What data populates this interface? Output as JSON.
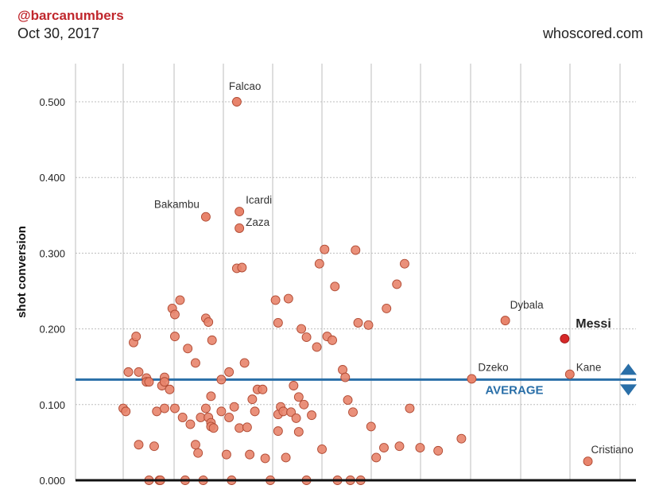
{
  "header": {
    "handle": "@barcanumbers",
    "date": "Oct 30, 2017",
    "source": "whoscored.com"
  },
  "colors": {
    "point_fill": "#e8846c",
    "point_stroke": "#b04a33",
    "highlight": "#d62828",
    "average_line": "#2a6fa8",
    "grid": "#bdbdbd"
  },
  "chart_data": {
    "type": "scatter",
    "ylabel": "shot conversion",
    "xlabel": "",
    "ylim": [
      0,
      0.55
    ],
    "yticks": [
      {
        "value": 0.0,
        "label": "0.000"
      },
      {
        "value": 0.1,
        "label": "0.100"
      },
      {
        "value": 0.2,
        "label": "0.200"
      },
      {
        "value": 0.3,
        "label": "0.300"
      },
      {
        "value": 0.4,
        "label": "0.400"
      },
      {
        "value": 0.5,
        "label": "0.500"
      }
    ],
    "average": {
      "value": 0.133,
      "label": "AVERAGE"
    },
    "grid": true,
    "labeled_points": [
      {
        "name": "Falcao",
        "x": 2.2,
        "y": 0.5
      },
      {
        "name": "Bakambu",
        "x": 1.6,
        "y": 0.348
      },
      {
        "name": "Icardi",
        "x": 2.25,
        "y": 0.355
      },
      {
        "name": "Zaza",
        "x": 2.25,
        "y": 0.333
      },
      {
        "name": "Dybala",
        "x": 7.4,
        "y": 0.211
      },
      {
        "name": "Messi",
        "x": 8.55,
        "y": 0.187,
        "highlight": true
      },
      {
        "name": "Dzeko",
        "x": 6.75,
        "y": 0.134
      },
      {
        "name": "Kane",
        "x": 8.65,
        "y": 0.14
      },
      {
        "name": "Cristiano",
        "x": 9.0,
        "y": 0.025
      }
    ],
    "points": [
      [
        0.0,
        0.095
      ],
      [
        0.05,
        0.091
      ],
      [
        0.1,
        0.143
      ],
      [
        0.2,
        0.182
      ],
      [
        0.25,
        0.19
      ],
      [
        0.3,
        0.143
      ],
      [
        0.3,
        0.047
      ],
      [
        0.45,
        0.135
      ],
      [
        0.45,
        0.13
      ],
      [
        0.5,
        0.0
      ],
      [
        0.5,
        0.13
      ],
      [
        0.6,
        0.045
      ],
      [
        0.65,
        0.091
      ],
      [
        0.7,
        0.0
      ],
      [
        0.72,
        0.0
      ],
      [
        0.75,
        0.125
      ],
      [
        0.8,
        0.136
      ],
      [
        0.8,
        0.13
      ],
      [
        0.8,
        0.095
      ],
      [
        0.9,
        0.12
      ],
      [
        0.95,
        0.227
      ],
      [
        1.0,
        0.219
      ],
      [
        1.0,
        0.19
      ],
      [
        1.0,
        0.095
      ],
      [
        1.1,
        0.238
      ],
      [
        1.15,
        0.083
      ],
      [
        1.2,
        0.0
      ],
      [
        1.25,
        0.174
      ],
      [
        1.3,
        0.074
      ],
      [
        1.4,
        0.155
      ],
      [
        1.4,
        0.047
      ],
      [
        1.45,
        0.036
      ],
      [
        1.5,
        0.083
      ],
      [
        1.55,
        0.0
      ],
      [
        1.6,
        0.214
      ],
      [
        1.6,
        0.095
      ],
      [
        1.65,
        0.209
      ],
      [
        1.65,
        0.083
      ],
      [
        1.7,
        0.111
      ],
      [
        1.7,
        0.076
      ],
      [
        1.7,
        0.071
      ],
      [
        1.72,
        0.185
      ],
      [
        1.75,
        0.069
      ],
      [
        1.9,
        0.133
      ],
      [
        1.9,
        0.091
      ],
      [
        2.0,
        0.034
      ],
      [
        2.05,
        0.143
      ],
      [
        2.05,
        0.083
      ],
      [
        2.1,
        0.0
      ],
      [
        2.15,
        0.097
      ],
      [
        2.2,
        0.28
      ],
      [
        2.25,
        0.069
      ],
      [
        2.3,
        0.281
      ],
      [
        2.35,
        0.155
      ],
      [
        2.4,
        0.07
      ],
      [
        2.45,
        0.034
      ],
      [
        2.5,
        0.107
      ],
      [
        2.55,
        0.091
      ],
      [
        2.6,
        0.12
      ],
      [
        2.7,
        0.12
      ],
      [
        2.75,
        0.029
      ],
      [
        2.85,
        0.0
      ],
      [
        2.95,
        0.238
      ],
      [
        3.0,
        0.208
      ],
      [
        3.0,
        0.087
      ],
      [
        3.0,
        0.065
      ],
      [
        3.05,
        0.097
      ],
      [
        3.1,
        0.091
      ],
      [
        3.15,
        0.03
      ],
      [
        3.2,
        0.24
      ],
      [
        3.25,
        0.09
      ],
      [
        3.3,
        0.125
      ],
      [
        3.35,
        0.082
      ],
      [
        3.4,
        0.11
      ],
      [
        3.4,
        0.064
      ],
      [
        3.45,
        0.2
      ],
      [
        3.5,
        0.1
      ],
      [
        3.55,
        0.0
      ],
      [
        3.55,
        0.189
      ],
      [
        3.65,
        0.086
      ],
      [
        3.75,
        0.176
      ],
      [
        3.8,
        0.286
      ],
      [
        3.85,
        0.041
      ],
      [
        3.9,
        0.305
      ],
      [
        3.95,
        0.19
      ],
      [
        4.05,
        0.185
      ],
      [
        4.1,
        0.256
      ],
      [
        4.15,
        0.0
      ],
      [
        4.25,
        0.146
      ],
      [
        4.3,
        0.136
      ],
      [
        4.35,
        0.106
      ],
      [
        4.4,
        0.0
      ],
      [
        4.45,
        0.09
      ],
      [
        4.5,
        0.304
      ],
      [
        4.55,
        0.208
      ],
      [
        4.6,
        0.0
      ],
      [
        4.75,
        0.205
      ],
      [
        4.8,
        0.071
      ],
      [
        4.9,
        0.03
      ],
      [
        5.05,
        0.043
      ],
      [
        5.1,
        0.227
      ],
      [
        5.3,
        0.259
      ],
      [
        5.35,
        0.045
      ],
      [
        5.45,
        0.286
      ],
      [
        5.55,
        0.095
      ],
      [
        5.75,
        0.043
      ],
      [
        6.1,
        0.039
      ],
      [
        6.55,
        0.055
      ]
    ]
  }
}
